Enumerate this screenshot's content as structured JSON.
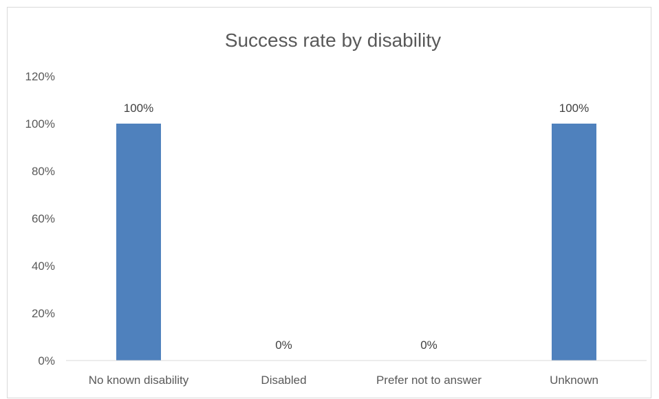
{
  "chart_data": {
    "type": "bar",
    "title": "Success rate by disability",
    "xlabel": "",
    "ylabel": "",
    "categories": [
      "No known disability",
      "Disabled",
      "Prefer not to answer",
      "Unknown"
    ],
    "values": [
      100,
      0,
      0,
      100
    ],
    "data_labels": [
      "100%",
      "0%",
      "0%",
      "100%"
    ],
    "ylim": [
      0,
      120
    ],
    "yticks": [
      0,
      20,
      40,
      60,
      80,
      100,
      120
    ],
    "ytick_labels": [
      "0%",
      "20%",
      "40%",
      "60%",
      "80%",
      "100%",
      "120%"
    ],
    "grid": false,
    "legend": "none",
    "bar_color": "#4f81bd"
  }
}
